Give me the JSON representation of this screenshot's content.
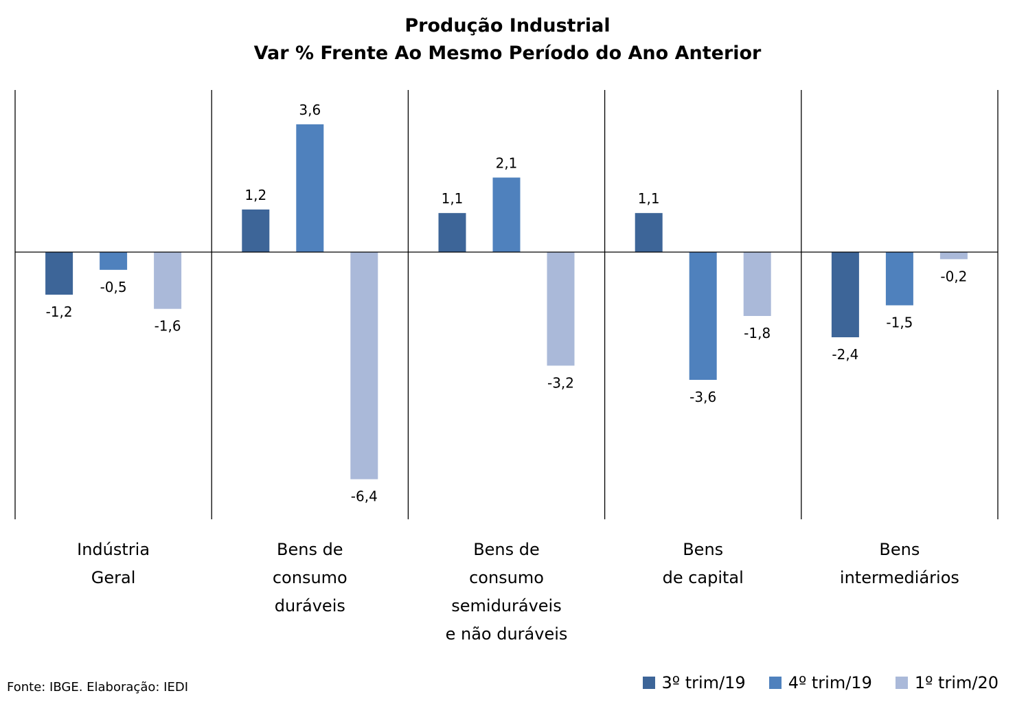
{
  "chart_data": {
    "type": "bar",
    "title": "Produção Industrial",
    "subtitle": "Var % Frente Ao Mesmo Período do Ano Anterior",
    "categories": [
      [
        "Indústria",
        "Geral"
      ],
      [
        "Bens de",
        "consumo",
        "duráveis"
      ],
      [
        "Bens de",
        "consumo",
        "semiduráveis",
        "e não duráveis"
      ],
      [
        "Bens",
        "de capital"
      ],
      [
        "Bens",
        "intermediários"
      ]
    ],
    "series": [
      {
        "name": "3º trim/19",
        "color": "#3d6598",
        "values": [
          -1.2,
          1.2,
          1.1,
          1.1,
          -2.4
        ],
        "labels": [
          "-1,2",
          "1,2",
          "1,1",
          "1,1",
          "-2,4"
        ]
      },
      {
        "name": "4º trim/19",
        "color": "#4f81bd",
        "values": [
          -0.5,
          3.6,
          2.1,
          -3.6,
          -1.5
        ],
        "labels": [
          "-0,5",
          "3,6",
          "2,1",
          "-3,6",
          "-1,5"
        ]
      },
      {
        "name": "1º trim/20",
        "color": "#aab9d9",
        "values": [
          -1.6,
          -6.4,
          -3.2,
          -1.8,
          -0.2
        ],
        "labels": [
          "-1,6",
          "-6,4",
          "-3,2",
          "-1,8",
          "-0,2"
        ]
      }
    ],
    "ylim": [
      -7.4,
      4.6
    ],
    "grid": false,
    "legend_position": "bottom-right"
  },
  "source": "Fonte: IBGE. Elaboração: IEDI"
}
